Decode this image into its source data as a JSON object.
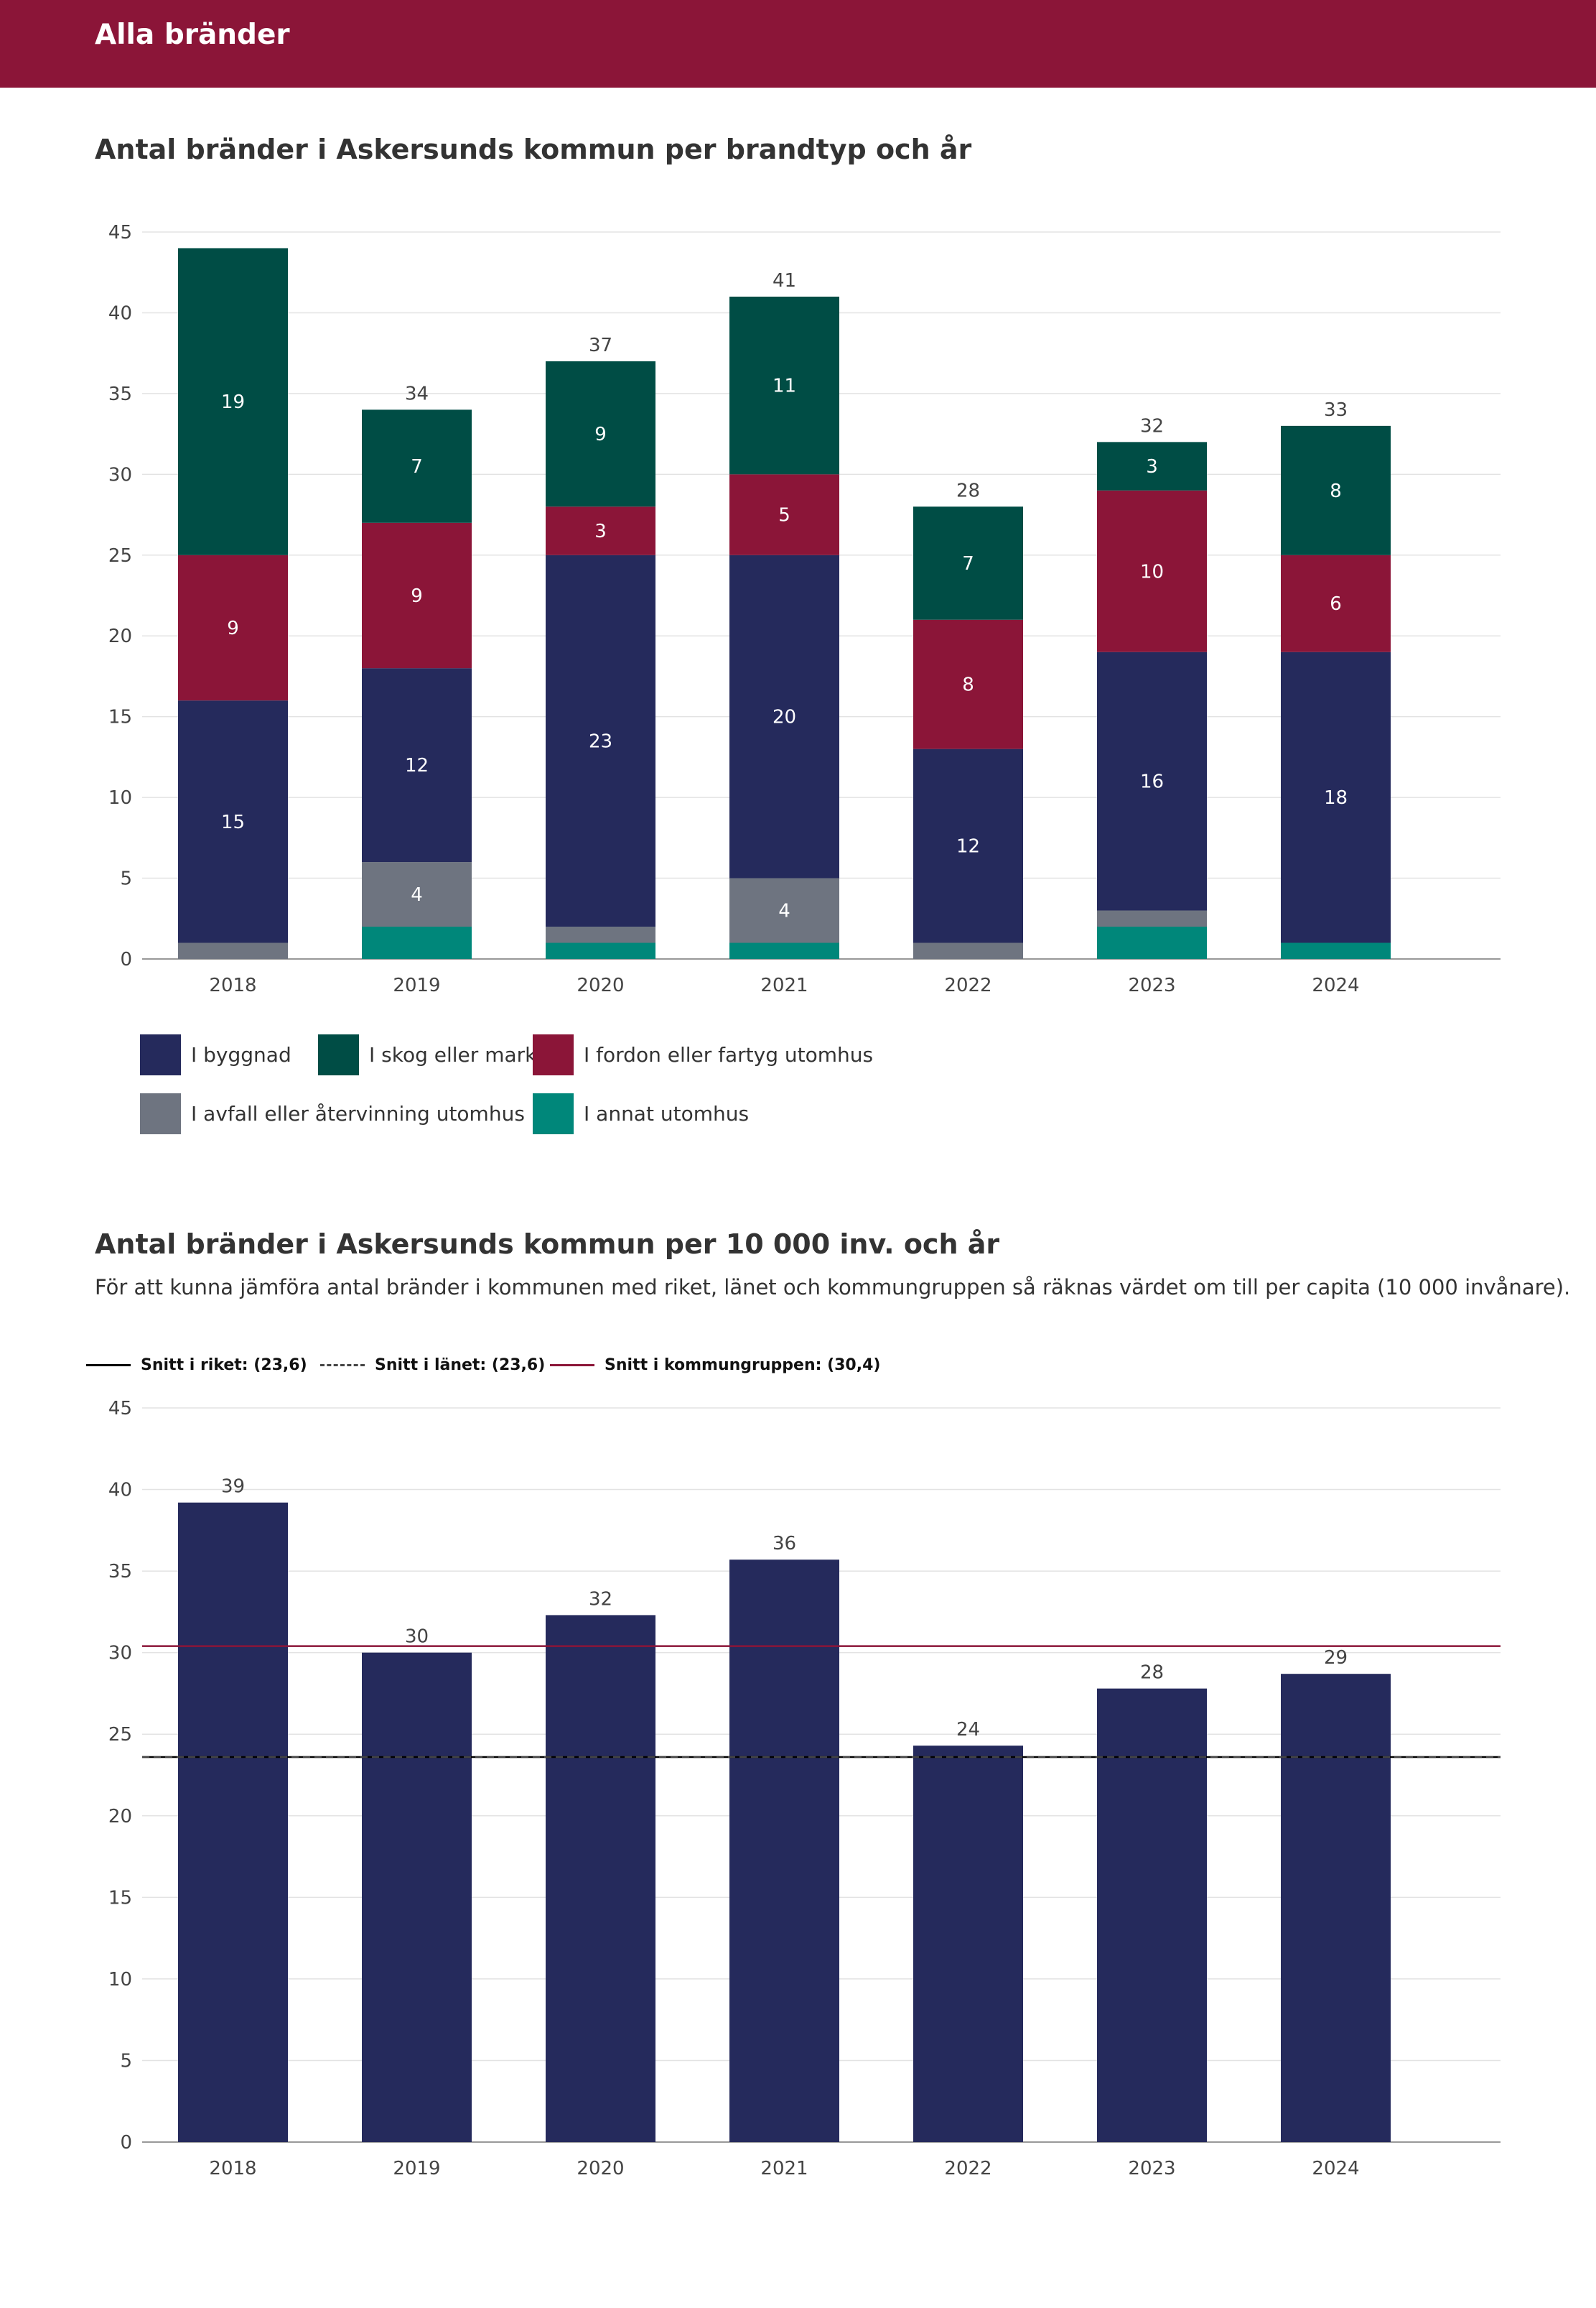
{
  "header": {
    "title": "Alla bränder"
  },
  "section1": {
    "title": "Antal bränder i Askersunds kommun per brandtyp och år"
  },
  "section2": {
    "title": "Antal bränder i Askersunds kommun per 10 000 inv. och år",
    "description": "För att kunna jämföra antal bränder i kommunen med riket, länet och kommungruppen så räknas värdet om till per capita (10 000 invånare)."
  },
  "legend1": [
    {
      "label": "I byggnad",
      "color": "#252a5c"
    },
    {
      "label": "I skog eller mark",
      "color": "#004d45"
    },
    {
      "label": "I fordon eller fartyg utomhus",
      "color": "#8b1538"
    },
    {
      "label": "I avfall eller återvinning utomhus",
      "color": "#6e7480"
    },
    {
      "label": "I annat utomhus",
      "color": "#00877a"
    }
  ],
  "legend2": [
    {
      "label": "Snitt i riket: (23,6)",
      "style": "solid",
      "color": "#000000"
    },
    {
      "label": "Snitt i länet: (23,6)",
      "style": "dashed",
      "color": "#444444"
    },
    {
      "label": "Snitt i kommungruppen: (30,4)",
      "style": "solid",
      "color": "#8b1538"
    }
  ],
  "chart_data": [
    {
      "type": "bar",
      "stacked": true,
      "title": "Antal bränder i Askersunds kommun per brandtyp och år",
      "categories": [
        "2018",
        "2019",
        "2020",
        "2021",
        "2022",
        "2023",
        "2024"
      ],
      "ylim": [
        0,
        45
      ],
      "yticks": [
        0,
        5,
        10,
        15,
        20,
        25,
        30,
        35,
        40,
        45
      ],
      "series": [
        {
          "name": "I annat utomhus",
          "color": "#00877a",
          "values": [
            0,
            2,
            1,
            1,
            0,
            2,
            1
          ],
          "labels": [
            "",
            "",
            "",
            "",
            "",
            "",
            ""
          ]
        },
        {
          "name": "I avfall eller återvinning utomhus",
          "color": "#6e7480",
          "values": [
            1,
            4,
            1,
            4,
            1,
            1,
            0
          ],
          "labels": [
            "",
            "4",
            "",
            "4",
            "",
            "",
            ""
          ]
        },
        {
          "name": "I byggnad",
          "color": "#252a5c",
          "values": [
            15,
            12,
            23,
            20,
            12,
            16,
            18
          ],
          "labels": [
            "15",
            "12",
            "23",
            "20",
            "12",
            "16",
            "18"
          ]
        },
        {
          "name": "I fordon eller fartyg utomhus",
          "color": "#8b1538",
          "values": [
            9,
            9,
            3,
            5,
            8,
            10,
            6
          ],
          "labels": [
            "9",
            "9",
            "3",
            "5",
            "8",
            "10",
            "6"
          ]
        },
        {
          "name": "I skog eller mark",
          "color": "#004d45",
          "values": [
            19,
            7,
            9,
            11,
            7,
            3,
            8
          ],
          "labels": [
            "19",
            "7",
            "9",
            "11",
            "7",
            "3",
            "8"
          ]
        }
      ],
      "totals": [
        "",
        "34",
        "37",
        "41",
        "28",
        "32",
        "33"
      ]
    },
    {
      "type": "bar",
      "title": "Antal bränder i Askersunds kommun per 10 000 inv. och år",
      "categories": [
        "2018",
        "2019",
        "2020",
        "2021",
        "2022",
        "2023",
        "2024"
      ],
      "values": [
        39.2,
        30.0,
        32.3,
        35.7,
        24.3,
        27.8,
        28.7
      ],
      "labels": [
        "39",
        "30",
        "32",
        "36",
        "24",
        "28",
        "29"
      ],
      "color": "#252a5c",
      "ylim": [
        0,
        45
      ],
      "yticks": [
        0,
        5,
        10,
        15,
        20,
        25,
        30,
        35,
        40,
        45
      ],
      "reference_lines": [
        {
          "name": "Snitt i riket",
          "value": 23.6,
          "style": "solid",
          "color": "#000000"
        },
        {
          "name": "Snitt i länet",
          "value": 23.6,
          "style": "dashed",
          "color": "#444444"
        },
        {
          "name": "Snitt i kommungruppen",
          "value": 30.4,
          "style": "solid",
          "color": "#8b1538"
        }
      ]
    }
  ]
}
